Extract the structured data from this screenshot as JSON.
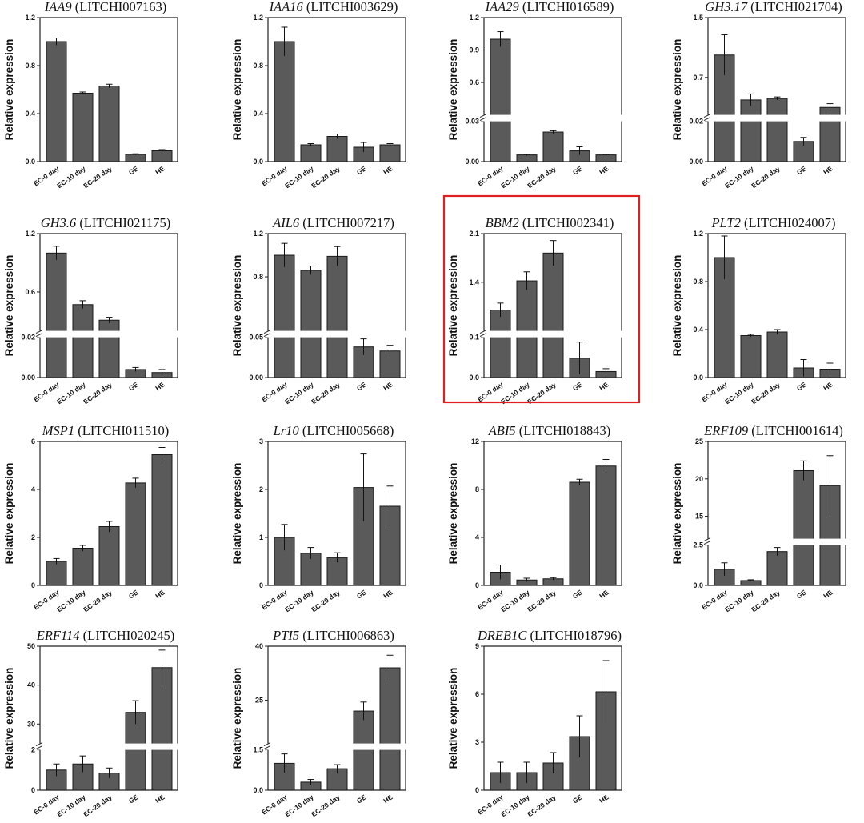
{
  "figure": {
    "highlight_color": "#e02020",
    "bar_color": "#5a5a5a",
    "highlighted_panel": "BBM2"
  },
  "chart_data": [
    {
      "type": "bar",
      "gene": "IAA9",
      "gene_id": "(LITCHI007163)",
      "ylabel": "Relative expression",
      "categories": [
        "EC-0 day",
        "EC-10 day",
        "EC-20 day",
        "GE",
        "HE"
      ],
      "values": [
        1.0,
        0.57,
        0.63,
        0.06,
        0.09
      ],
      "errors": [
        0.03,
        0.01,
        0.015,
        0.005,
        0.01
      ],
      "ylim": [
        0,
        1.2
      ],
      "yticks": [
        "0.0",
        "0.4",
        "0.8",
        "1.2"
      ]
    },
    {
      "type": "bar",
      "gene": "IAA16",
      "gene_id": "(LITCHI003629)",
      "ylabel": "Relative expression",
      "categories": [
        "EC-0 day",
        "EC-10 day",
        "EC-20 day",
        "GE",
        "HE"
      ],
      "values": [
        1.0,
        0.14,
        0.21,
        0.12,
        0.14
      ],
      "errors": [
        0.12,
        0.01,
        0.02,
        0.04,
        0.01
      ],
      "ylim": [
        0,
        1.2
      ],
      "yticks": [
        "0.0",
        "0.4",
        "0.8",
        "1.2"
      ]
    },
    {
      "type": "bar",
      "gene": "IAA29",
      "gene_id": "(LITCHI016589)",
      "ylabel": "Relative expression",
      "categories": [
        "EC-0 day",
        "EC-10 day",
        "EC-20 day",
        "GE",
        "HE"
      ],
      "values": [
        1.0,
        0.005,
        0.022,
        0.008,
        0.005
      ],
      "errors": [
        0.07,
        0.0005,
        0.001,
        0.003,
        0.0005
      ],
      "ylim": [
        0,
        1.2
      ],
      "axis_break": [
        0.03,
        0.3
      ],
      "yticks": [
        "0.00",
        "0.03",
        "0.6",
        "0.9",
        "1.2"
      ]
    },
    {
      "type": "bar",
      "gene": "GH3.17",
      "gene_id": "(LITCHI021704)",
      "ylabel": "Relative expression",
      "categories": [
        "EC-0 day",
        "EC-10 day",
        "EC-20 day",
        "GE",
        "HE"
      ],
      "values": [
        1.0,
        0.4,
        0.42,
        0.01,
        0.3
      ],
      "errors": [
        0.27,
        0.08,
        0.02,
        0.002,
        0.05
      ],
      "ylim": [
        0,
        1.5
      ],
      "axis_break": [
        0.02,
        0.2
      ],
      "yticks": [
        "0.00",
        "0.02",
        "0.7",
        "1.5"
      ]
    },
    {
      "type": "bar",
      "gene": "GH3.6",
      "gene_id": "(LITCHI021175)",
      "ylabel": "Relative expression",
      "categories": [
        "EC-0 day",
        "EC-10 day",
        "EC-20 day",
        "GE",
        "HE"
      ],
      "values": [
        1.0,
        0.47,
        0.31,
        0.004,
        0.0025
      ],
      "errors": [
        0.07,
        0.04,
        0.03,
        0.001,
        0.0015
      ],
      "ylim": [
        0,
        1.2
      ],
      "axis_break": [
        0.02,
        0.2
      ],
      "yticks": [
        "0.00",
        "0.02",
        "0.6",
        "1.2"
      ]
    },
    {
      "type": "bar",
      "gene": "AIL6",
      "gene_id": "(LITCHI007217)",
      "ylabel": "Relative expression",
      "categories": [
        "EC-0 day",
        "EC-10 day",
        "EC-20 day",
        "GE",
        "HE"
      ],
      "values": [
        1.0,
        0.86,
        0.99,
        0.038,
        0.033
      ],
      "errors": [
        0.11,
        0.04,
        0.09,
        0.01,
        0.007
      ],
      "ylim": [
        0,
        1.2
      ],
      "axis_break": [
        0.05,
        0.3
      ],
      "yticks": [
        "0.00",
        "0.05",
        "0.8",
        "1.2"
      ]
    },
    {
      "type": "bar",
      "gene": "BBM2",
      "gene_id": "(LITCHI002341)",
      "ylabel": "Relative expression",
      "categories": [
        "EC-0 day",
        "EC-10 day",
        "EC-20 day",
        "GE",
        "HE"
      ],
      "values": [
        1.0,
        1.42,
        1.82,
        0.048,
        0.015
      ],
      "errors": [
        0.1,
        0.13,
        0.18,
        0.04,
        0.007
      ],
      "ylim": [
        0,
        2.1
      ],
      "axis_break": [
        0.1,
        0.7
      ],
      "yticks": [
        "0.0",
        "0.1",
        "1.4",
        "2.1"
      ]
    },
    {
      "type": "bar",
      "gene": "PLT2",
      "gene_id": "(LITCHI024007)",
      "ylabel": "Relative expression",
      "categories": [
        "EC-0 day",
        "EC-10 day",
        "EC-20 day",
        "GE",
        "HE"
      ],
      "values": [
        1.0,
        0.35,
        0.38,
        0.08,
        0.07
      ],
      "errors": [
        0.18,
        0.01,
        0.02,
        0.07,
        0.05
      ],
      "ylim": [
        0,
        1.2
      ],
      "yticks": [
        "0.0",
        "0.4",
        "0.8",
        "1.2"
      ]
    },
    {
      "type": "bar",
      "gene": "MSP1",
      "gene_id": "(LITCHI011510)",
      "ylabel": "Relative expression",
      "categories": [
        "EC-0 day",
        "EC-10 day",
        "EC-20 day",
        "GE",
        "HE"
      ],
      "values": [
        1.0,
        1.55,
        2.45,
        4.27,
        5.45
      ],
      "errors": [
        0.12,
        0.12,
        0.22,
        0.2,
        0.3
      ],
      "ylim": [
        0,
        6
      ],
      "yticks": [
        "0",
        "2",
        "4",
        "6"
      ]
    },
    {
      "type": "bar",
      "gene": "Lr10",
      "gene_id": "(LITCHI005668)",
      "ylabel": "Relative expression",
      "categories": [
        "EC-0 day",
        "EC-10 day",
        "EC-20 day",
        "GE",
        "HE"
      ],
      "values": [
        1.0,
        0.67,
        0.58,
        2.04,
        1.65
      ],
      "errors": [
        0.27,
        0.12,
        0.1,
        0.7,
        0.42
      ],
      "ylim": [
        0,
        3
      ],
      "yticks": [
        "0",
        "1",
        "2",
        "3"
      ]
    },
    {
      "type": "bar",
      "gene": "ABI5",
      "gene_id": "(LITCHI018843)",
      "ylabel": "Relative expression",
      "categories": [
        "EC-0 day",
        "EC-10 day",
        "EC-20 day",
        "GE",
        "HE"
      ],
      "values": [
        1.1,
        0.45,
        0.55,
        8.6,
        9.95
      ],
      "errors": [
        0.6,
        0.15,
        0.1,
        0.25,
        0.55
      ],
      "ylim": [
        0,
        12
      ],
      "yticks": [
        "0",
        "4",
        "8",
        "12"
      ]
    },
    {
      "type": "bar",
      "gene": "ERF109",
      "gene_id": "(LITCHI001614)",
      "ylabel": "Relative expression",
      "categories": [
        "EC-0 day",
        "EC-10 day",
        "EC-20 day",
        "GE",
        "HE"
      ],
      "values": [
        1.0,
        0.3,
        2.1,
        21.1,
        19.1
      ],
      "errors": [
        0.4,
        0.05,
        0.25,
        1.3,
        4.0
      ],
      "ylim": [
        0,
        25
      ],
      "axis_break": [
        2.5,
        12
      ],
      "yticks": [
        "0.0",
        "2.5",
        "15",
        "20",
        "25"
      ]
    },
    {
      "type": "bar",
      "gene": "ERF114",
      "gene_id": "(LITCHI020245)",
      "ylabel": "Relative expression",
      "categories": [
        "EC-0 day",
        "EC-10 day",
        "EC-20 day",
        "GE",
        "HE"
      ],
      "values": [
        1.0,
        1.3,
        0.85,
        33,
        44.5
      ],
      "errors": [
        0.3,
        0.4,
        0.25,
        3.0,
        4.5
      ],
      "ylim": [
        0,
        50
      ],
      "axis_break": [
        2,
        25
      ],
      "yticks": [
        "0",
        "2",
        "30",
        "40",
        "50"
      ]
    },
    {
      "type": "bar",
      "gene": "PTI5",
      "gene_id": "(LITCHI006863)",
      "ylabel": "Relative expression",
      "categories": [
        "EC-0 day",
        "EC-10 day",
        "EC-20 day",
        "GE",
        "HE"
      ],
      "values": [
        1.0,
        0.3,
        0.8,
        22,
        34
      ],
      "errors": [
        0.35,
        0.1,
        0.15,
        2.5,
        3.5
      ],
      "ylim": [
        0,
        40
      ],
      "axis_break": [
        1.5,
        13
      ],
      "yticks": [
        "0.0",
        "1.5",
        "25",
        "40"
      ]
    },
    {
      "type": "bar",
      "gene": "DREB1C",
      "gene_id": "(LITCHI018796)",
      "ylabel": "Relative expression",
      "categories": [
        "EC-0 day",
        "EC-10 day",
        "EC-20 day",
        "GE",
        "HE"
      ],
      "values": [
        1.1,
        1.1,
        1.7,
        3.35,
        6.15
      ],
      "errors": [
        0.65,
        0.65,
        0.65,
        1.3,
        1.95
      ],
      "ylim": [
        0,
        9
      ],
      "yticks": [
        "0",
        "3",
        "6",
        "9"
      ]
    }
  ]
}
